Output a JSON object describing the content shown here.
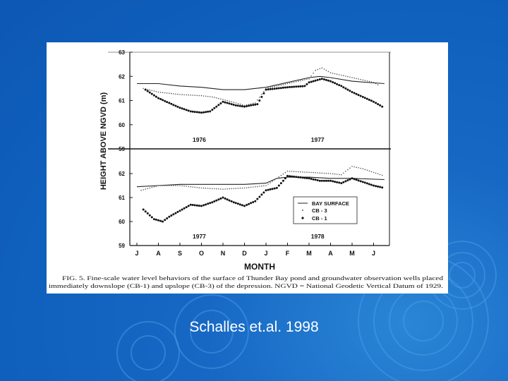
{
  "slide": {
    "caption": "Schalles et.al. 1998",
    "background_color": "#0f5fbd",
    "caption_color": "#ffffff"
  },
  "figure": {
    "ylabel": "HEIGHT ABOVE NGVD (m)",
    "xlabel": "MONTH",
    "caption_line1": "FIG. 5.   Fine-scale water level behaviors of the surface of Thunder Bay pond and groundwater observation wells placed",
    "caption_line2": "immediately downslope (CB-1) and upslope (CB-3) of the depression. NGVD = National Geodetic Vertical Datum of 1929.",
    "legend": [
      "BAY SURFACE",
      "CB - 3",
      "CB - 1"
    ]
  },
  "chart_data": [
    {
      "type": "line",
      "panel": "top",
      "ylim": [
        59,
        63
      ],
      "yticks": [
        "63",
        "62",
        "61",
        "60",
        "59"
      ],
      "year_labels": [
        "1976",
        "1977"
      ],
      "months": [
        "J",
        "A",
        "S",
        "O",
        "N",
        "D",
        "J",
        "F",
        "M",
        "A",
        "M",
        "J"
      ],
      "series": [
        {
          "name": "BAY SURFACE",
          "x": [
            0,
            1,
            2,
            3,
            4,
            5,
            6,
            7,
            8,
            8.5,
            9,
            10,
            11.5
          ],
          "y": [
            61.7,
            61.7,
            61.6,
            61.55,
            61.45,
            61.45,
            61.55,
            61.75,
            61.95,
            62.0,
            61.95,
            61.8,
            61.7
          ]
        },
        {
          "name": "CB - 3",
          "x": [
            0.3,
            1,
            2,
            3,
            3.5,
            4.2,
            5,
            5.5,
            6,
            7,
            8,
            8.3,
            8.6,
            9,
            9.5,
            10,
            10.5,
            11,
            11.3
          ],
          "y": [
            61.5,
            61.35,
            61.25,
            61.2,
            61.15,
            61.0,
            60.8,
            60.9,
            61.5,
            61.7,
            61.9,
            62.25,
            62.35,
            62.15,
            62.05,
            61.95,
            61.85,
            61.75,
            61.6
          ]
        },
        {
          "name": "CB - 1",
          "x": [
            0.4,
            1,
            1.5,
            2,
            2.5,
            3,
            3.4,
            4,
            4.6,
            5,
            5.6,
            6,
            7,
            7.8,
            8,
            8.6,
            9,
            9.5,
            10,
            10.5,
            11,
            11.5
          ],
          "y": [
            61.45,
            61.1,
            60.9,
            60.7,
            60.55,
            60.5,
            60.55,
            60.95,
            60.8,
            60.75,
            60.85,
            61.45,
            61.55,
            61.6,
            61.75,
            61.9,
            61.8,
            61.6,
            61.35,
            61.15,
            60.95,
            60.7
          ]
        }
      ]
    },
    {
      "type": "line",
      "panel": "bottom",
      "ylim": [
        59,
        62
      ],
      "yticks": [
        "62",
        "61",
        "60",
        "59"
      ],
      "year_labels": [
        "1977",
        "1978"
      ],
      "months": [
        "J",
        "A",
        "S",
        "O",
        "N",
        "D",
        "J",
        "F",
        "M",
        "A",
        "M",
        "J"
      ],
      "series": [
        {
          "name": "BAY SURFACE",
          "x": [
            0,
            1,
            2,
            3,
            4,
            5,
            6,
            6.5,
            7,
            8,
            9,
            10,
            11.5
          ],
          "y": [
            61.45,
            61.5,
            61.55,
            61.55,
            61.55,
            61.55,
            61.6,
            61.8,
            61.85,
            61.85,
            61.8,
            61.8,
            61.75
          ]
        },
        {
          "name": "CB - 3",
          "x": [
            0.2,
            1,
            2,
            3,
            4,
            5,
            6,
            6.5,
            7,
            8,
            9,
            9.5,
            10,
            10.5,
            11,
            11.5
          ],
          "y": [
            61.3,
            61.5,
            61.5,
            61.4,
            61.35,
            61.4,
            61.5,
            61.8,
            62.1,
            62.05,
            62.0,
            61.95,
            62.3,
            62.2,
            62.05,
            61.9
          ]
        },
        {
          "name": "CB - 1",
          "x": [
            0.3,
            0.8,
            1.2,
            1.5,
            2.5,
            3,
            3.5,
            4,
            4.5,
            5,
            5.5,
            6,
            6.5,
            7,
            7.5,
            8,
            8.5,
            9,
            9.5,
            10,
            10.5,
            11,
            11.5
          ],
          "y": [
            60.5,
            60.1,
            60.0,
            60.2,
            60.7,
            60.65,
            60.8,
            61.0,
            60.8,
            60.65,
            60.85,
            61.3,
            61.4,
            61.9,
            61.85,
            61.8,
            61.7,
            61.7,
            61.6,
            61.8,
            61.65,
            61.5,
            61.4
          ]
        }
      ]
    }
  ]
}
